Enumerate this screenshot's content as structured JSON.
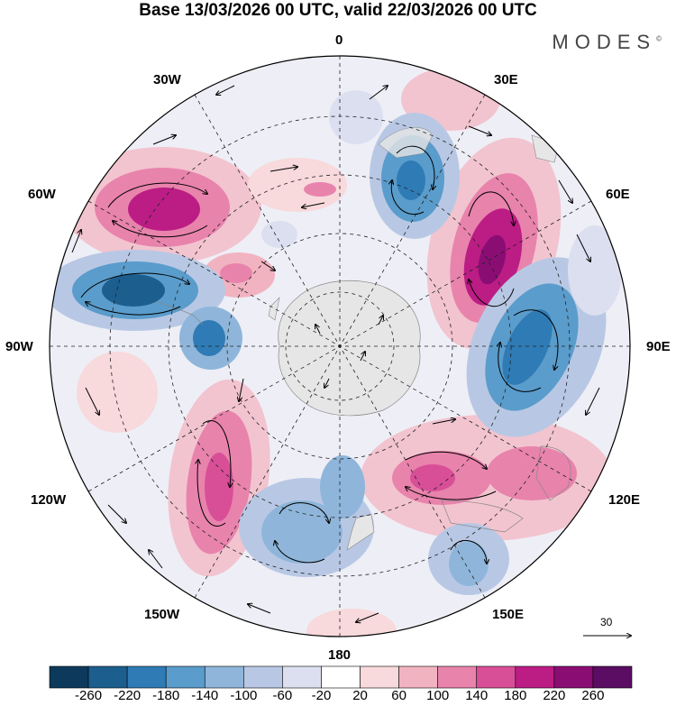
{
  "title": "Base 13/03/2026 00 UTC, valid 22/03/2026 00 UTC",
  "brand": {
    "name": "MODES",
    "mark": "©"
  },
  "longitude_labels": [
    "0",
    "30E",
    "60E",
    "90E",
    "120E",
    "150E",
    "180",
    "150W",
    "120W",
    "90W",
    "60W",
    "30W"
  ],
  "colorbar": {
    "tick_labels": [
      "-260",
      "-220",
      "-180",
      "-140",
      "-100",
      "-60",
      "-20",
      "20",
      "60",
      "100",
      "140",
      "180",
      "220",
      "260"
    ],
    "colors": [
      "#0d3a5c",
      "#1c5e8e",
      "#2f7bb5",
      "#5a9ccb",
      "#8fb6da",
      "#b8c8e4",
      "#dcdff0",
      "#ffffff",
      "#f8d9dc",
      "#f2b3c1",
      "#e883ac",
      "#d84f98",
      "#bb1d84",
      "#8a0d74",
      "#5a0d62"
    ]
  },
  "reference_vector": {
    "value": "30"
  },
  "colors": {
    "land": "#e6e6e6",
    "frame": "#000000"
  }
}
